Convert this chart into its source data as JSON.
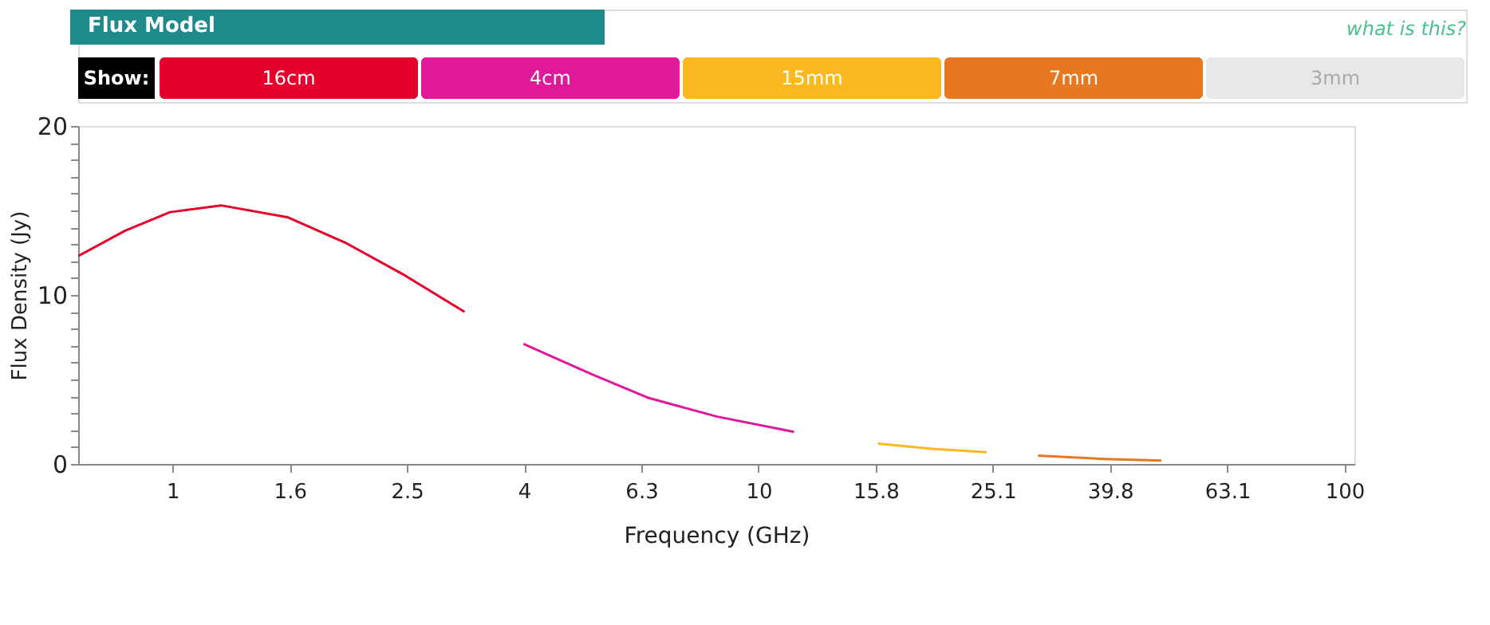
{
  "chart_data": {
    "type": "line",
    "title": "Flux Model",
    "xlabel": "Frequency (GHz)",
    "ylabel": "Flux Density (Jy)",
    "annotations": [
      "what is this?",
      "Show:"
    ],
    "log": "x",
    "xlim": [
      0.69,
      104
    ],
    "xticks": [
      1,
      {
        "value": 1.585,
        "label": "1.6"
      },
      {
        "value": 2.512,
        "label": "2.5"
      },
      {
        "value": 3.981,
        "label": "4"
      },
      {
        "value": 6.31,
        "label": "6.3"
      },
      10,
      {
        "value": 15.85,
        "label": "15.8"
      },
      {
        "value": 25.12,
        "label": "25.1"
      },
      {
        "value": 39.81,
        "label": "39.8"
      },
      {
        "value": 63.1,
        "label": "63.1"
      },
      100
    ],
    "ylim": [
      0,
      20
    ],
    "yticks": [
      0,
      {
        "value": 1,
        "label": null
      },
      {
        "value": 2,
        "label": null
      },
      {
        "value": 3,
        "label": null
      },
      {
        "value": 4,
        "label": null
      },
      {
        "value": 5,
        "label": null
      },
      {
        "value": 6,
        "label": null
      },
      {
        "value": 7,
        "label": null
      },
      {
        "value": 8,
        "label": null
      },
      {
        "value": 9,
        "label": null
      },
      10,
      {
        "value": 11,
        "label": null
      },
      {
        "value": 12,
        "label": null
      },
      {
        "value": 13,
        "label": null
      },
      {
        "value": 14,
        "label": null
      },
      {
        "value": 15,
        "label": null
      },
      {
        "value": 16,
        "label": null
      },
      {
        "value": 17,
        "label": null
      },
      {
        "value": 18,
        "label": null
      },
      {
        "value": 19,
        "label": null
      },
      20
    ],
    "grid": false,
    "legend": "top",
    "marker": "none",
    "line_style": "solid",
    "series": [
      {
        "name": "16cm",
        "color": "#e4002b",
        "x": [
          0.69,
          0.83,
          0.99,
          1.21,
          1.57,
          1.97,
          2.48,
          3.15
        ],
        "values": [
          12.3,
          13.8,
          14.9,
          15.3,
          14.6,
          13.1,
          11.2,
          9.0
        ]
      },
      {
        "name": "4cm",
        "color": "#e0189a",
        "x": [
          3.97,
          5.2,
          6.5,
          8.5,
          11.5
        ],
        "values": [
          7.1,
          5.3,
          3.9,
          2.8,
          1.9
        ]
      },
      {
        "name": "15mm",
        "color": "#fbb81f",
        "x": [
          16.0,
          19.8,
          24.5
        ],
        "values": [
          1.2,
          0.9,
          0.7
        ]
      },
      {
        "name": "7mm",
        "color": "#e87722",
        "x": [
          30.0,
          38.9,
          48.7
        ],
        "values": [
          0.5,
          0.3,
          0.2
        ]
      },
      {
        "name": "3mm"
      }
    ]
  }
}
